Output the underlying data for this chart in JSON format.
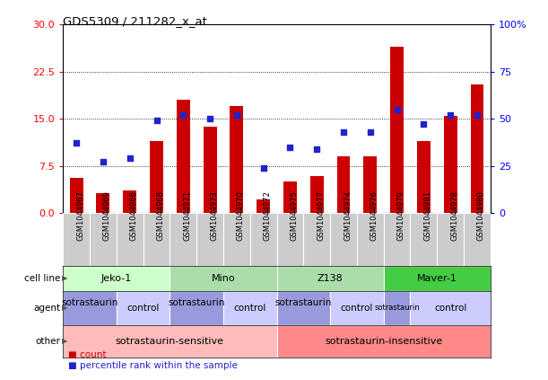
{
  "title": "GDS5309 / 211282_x_at",
  "samples": [
    "GSM1044967",
    "GSM1044969",
    "GSM1044966",
    "GSM1044968",
    "GSM1044971",
    "GSM1044973",
    "GSM1044970",
    "GSM1044972",
    "GSM1044975",
    "GSM1044977",
    "GSM1044974",
    "GSM1044976",
    "GSM1044979",
    "GSM1044981",
    "GSM1044978",
    "GSM1044980"
  ],
  "counts": [
    5.5,
    3.2,
    3.5,
    11.5,
    18.0,
    13.8,
    17.0,
    2.2,
    5.0,
    5.8,
    9.0,
    9.0,
    26.5,
    11.5,
    15.5,
    20.5
  ],
  "percentiles": [
    37,
    27,
    29,
    49,
    52,
    50,
    52,
    24,
    35,
    34,
    43,
    43,
    55,
    47,
    52,
    52
  ],
  "left_yticks": [
    0,
    7.5,
    15,
    22.5,
    30
  ],
  "right_ytick_labels": [
    "0",
    "25",
    "50",
    "75",
    "100%"
  ],
  "bar_color": "#cc0000",
  "dot_color": "#2222cc",
  "bg_color": "#ffffff",
  "grid_color": "#000000",
  "xtick_bg": "#cccccc",
  "cell_line_colors": [
    "#ccffcc",
    "#aaddaa",
    "#aaddaa",
    "#44cc44"
  ],
  "agent_sotra_color": "#9999dd",
  "agent_control_color": "#ccccff",
  "other_sensitive_color": "#ffbbbb",
  "other_insensitive_color": "#ff8888",
  "cell_lines": [
    {
      "label": "Jeko-1",
      "start": 0,
      "end": 4
    },
    {
      "label": "Mino",
      "start": 4,
      "end": 8
    },
    {
      "label": "Z138",
      "start": 8,
      "end": 12
    },
    {
      "label": "Maver-1",
      "start": 12,
      "end": 16
    }
  ],
  "agents": [
    {
      "label": "sotrastaurin\n",
      "start": 0,
      "end": 2,
      "type": "sotra"
    },
    {
      "label": "control",
      "start": 2,
      "end": 4,
      "type": "control"
    },
    {
      "label": "sotrastaurin\n",
      "start": 4,
      "end": 6,
      "type": "sotra"
    },
    {
      "label": "control",
      "start": 6,
      "end": 8,
      "type": "control"
    },
    {
      "label": "sotrastaurin\n",
      "start": 8,
      "end": 10,
      "type": "sotra"
    },
    {
      "label": "control",
      "start": 10,
      "end": 12,
      "type": "control"
    },
    {
      "label": "sotrastaurin",
      "start": 12,
      "end": 13,
      "type": "sotra"
    },
    {
      "label": "control",
      "start": 13,
      "end": 16,
      "type": "control"
    }
  ],
  "others": [
    {
      "label": "sotrastaurin-sensitive",
      "start": 0,
      "end": 8
    },
    {
      "label": "sotrastaurin-insensitive",
      "start": 8,
      "end": 16
    }
  ]
}
